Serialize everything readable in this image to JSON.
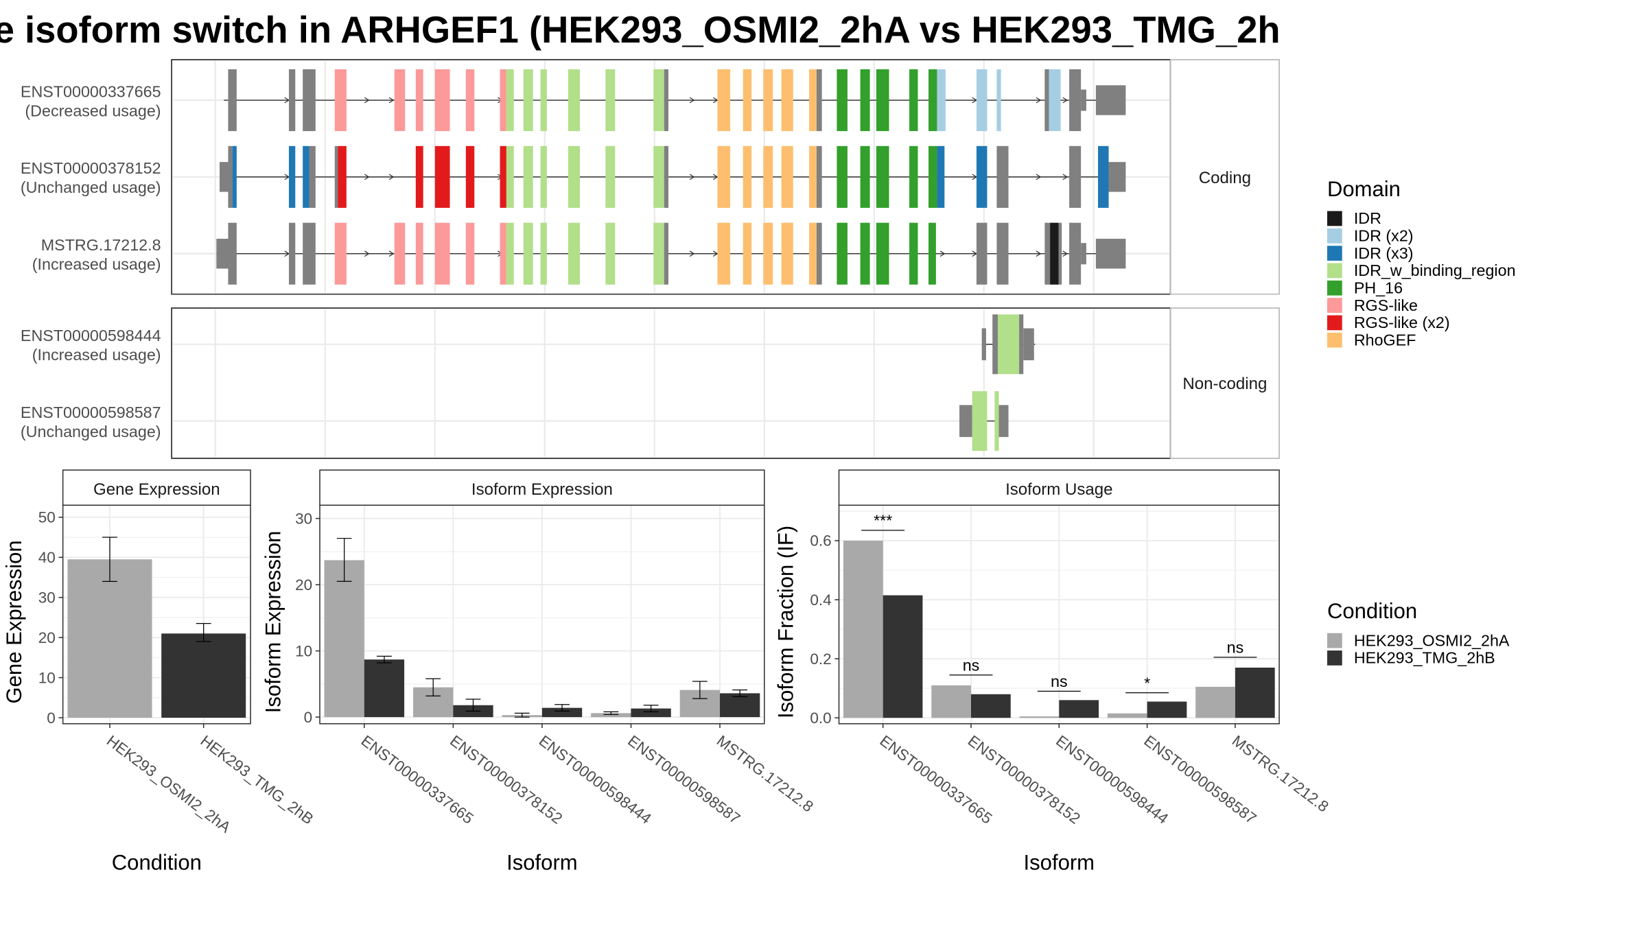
{
  "title": "e isoform switch in ARHGEF1 (HEK293_OSMI2_2hA vs HEK293_TMG_2h",
  "colors": {
    "IDR": "#1a1a1a",
    "IDR (x2)": "#a6cee3",
    "IDR (x3)": "#1f78b4",
    "IDR_w_binding_region": "#b2df8a",
    "PH_16": "#33a02c",
    "RGS-like": "#fb9a99",
    "RGS-like (x2)": "#e31a1c",
    "RhoGEF": "#fdbf6f",
    "exon": "#808080",
    "cond1": "#a9a9a9",
    "cond2": "#333333"
  },
  "panels": {
    "coding_label": "Coding",
    "noncoding_label": "Non-coding"
  },
  "transcripts": {
    "coding": [
      {
        "id": "ENST00000337665",
        "usage": "(Decreased usage)"
      },
      {
        "id": "ENST00000378152",
        "usage": "(Unchanged usage)"
      },
      {
        "id": "MSTRG.17212.8",
        "usage": "(Increased usage)"
      }
    ],
    "noncoding": [
      {
        "id": "ENST00000598444",
        "usage": "(Increased usage)"
      },
      {
        "id": "ENST00000598587",
        "usage": "(Unchanged usage)"
      }
    ]
  },
  "legend": {
    "domain_title": "Domain",
    "domains": [
      "IDR",
      "IDR (x2)",
      "IDR (x3)",
      "IDR_w_binding_region",
      "PH_16",
      "RGS-like",
      "RGS-like (x2)",
      "RhoGEF"
    ],
    "condition_title": "Condition",
    "conditions": [
      "HEK293_OSMI2_2hA",
      "HEK293_TMG_2hB"
    ]
  },
  "chart_data": [
    {
      "type": "bar",
      "title": "Gene Expression",
      "xlabel": "Condition",
      "ylabel": "Gene Expression",
      "categories": [
        "HEK293_OSMI2_2hA",
        "HEK293_TMG_2hB"
      ],
      "values": [
        39.5,
        21
      ],
      "errors": [
        [
          34,
          45
        ],
        [
          19,
          23.5
        ]
      ],
      "ylim": [
        -1.5,
        53
      ],
      "yticks": [
        0,
        10,
        20,
        30,
        40,
        50
      ]
    },
    {
      "type": "bar",
      "title": "Isoform Expression",
      "xlabel": "Isoform",
      "ylabel": "Isoform Expression",
      "categories": [
        "ENST00000337665",
        "ENST00000378152",
        "ENST00000598444",
        "ENST00000598587",
        "MSTRG.17212.8"
      ],
      "series": [
        {
          "name": "HEK293_OSMI2_2hA",
          "values": [
            23.7,
            4.5,
            0.3,
            0.6,
            4.1
          ],
          "errors": [
            [
              20.5,
              27
            ],
            [
              3.2,
              5.8
            ],
            [
              0,
              0.6
            ],
            [
              0.4,
              0.8
            ],
            [
              2.8,
              5.4
            ]
          ]
        },
        {
          "name": "HEK293_TMG_2hB",
          "values": [
            8.7,
            1.8,
            1.4,
            1.3,
            3.6
          ],
          "errors": [
            [
              8.2,
              9.2
            ],
            [
              0.9,
              2.7
            ],
            [
              0.9,
              1.9
            ],
            [
              0.8,
              1.8
            ],
            [
              3.1,
              4.1
            ]
          ]
        }
      ],
      "ylim": [
        -1,
        32
      ],
      "yticks": [
        0,
        10,
        20,
        30
      ]
    },
    {
      "type": "bar",
      "title": "Isoform Usage",
      "xlabel": "Isoform",
      "ylabel": "Isoform Fraction (IF)",
      "categories": [
        "ENST00000337665",
        "ENST00000378152",
        "ENST00000598444",
        "ENST00000598587",
        "MSTRG.17212.8"
      ],
      "series": [
        {
          "name": "HEK293_OSMI2_2hA",
          "values": [
            0.6,
            0.11,
            0.005,
            0.015,
            0.105
          ]
        },
        {
          "name": "HEK293_TMG_2hB",
          "values": [
            0.415,
            0.08,
            0.06,
            0.055,
            0.17
          ]
        }
      ],
      "significance": [
        "***",
        "ns",
        "ns",
        "*",
        "ns"
      ],
      "sig_y": [
        0.635,
        0.145,
        0.09,
        0.085,
        0.205
      ],
      "ylim": [
        -0.02,
        0.72
      ],
      "yticks": [
        "0.0",
        "0.2",
        "0.4",
        "0.6"
      ]
    }
  ]
}
